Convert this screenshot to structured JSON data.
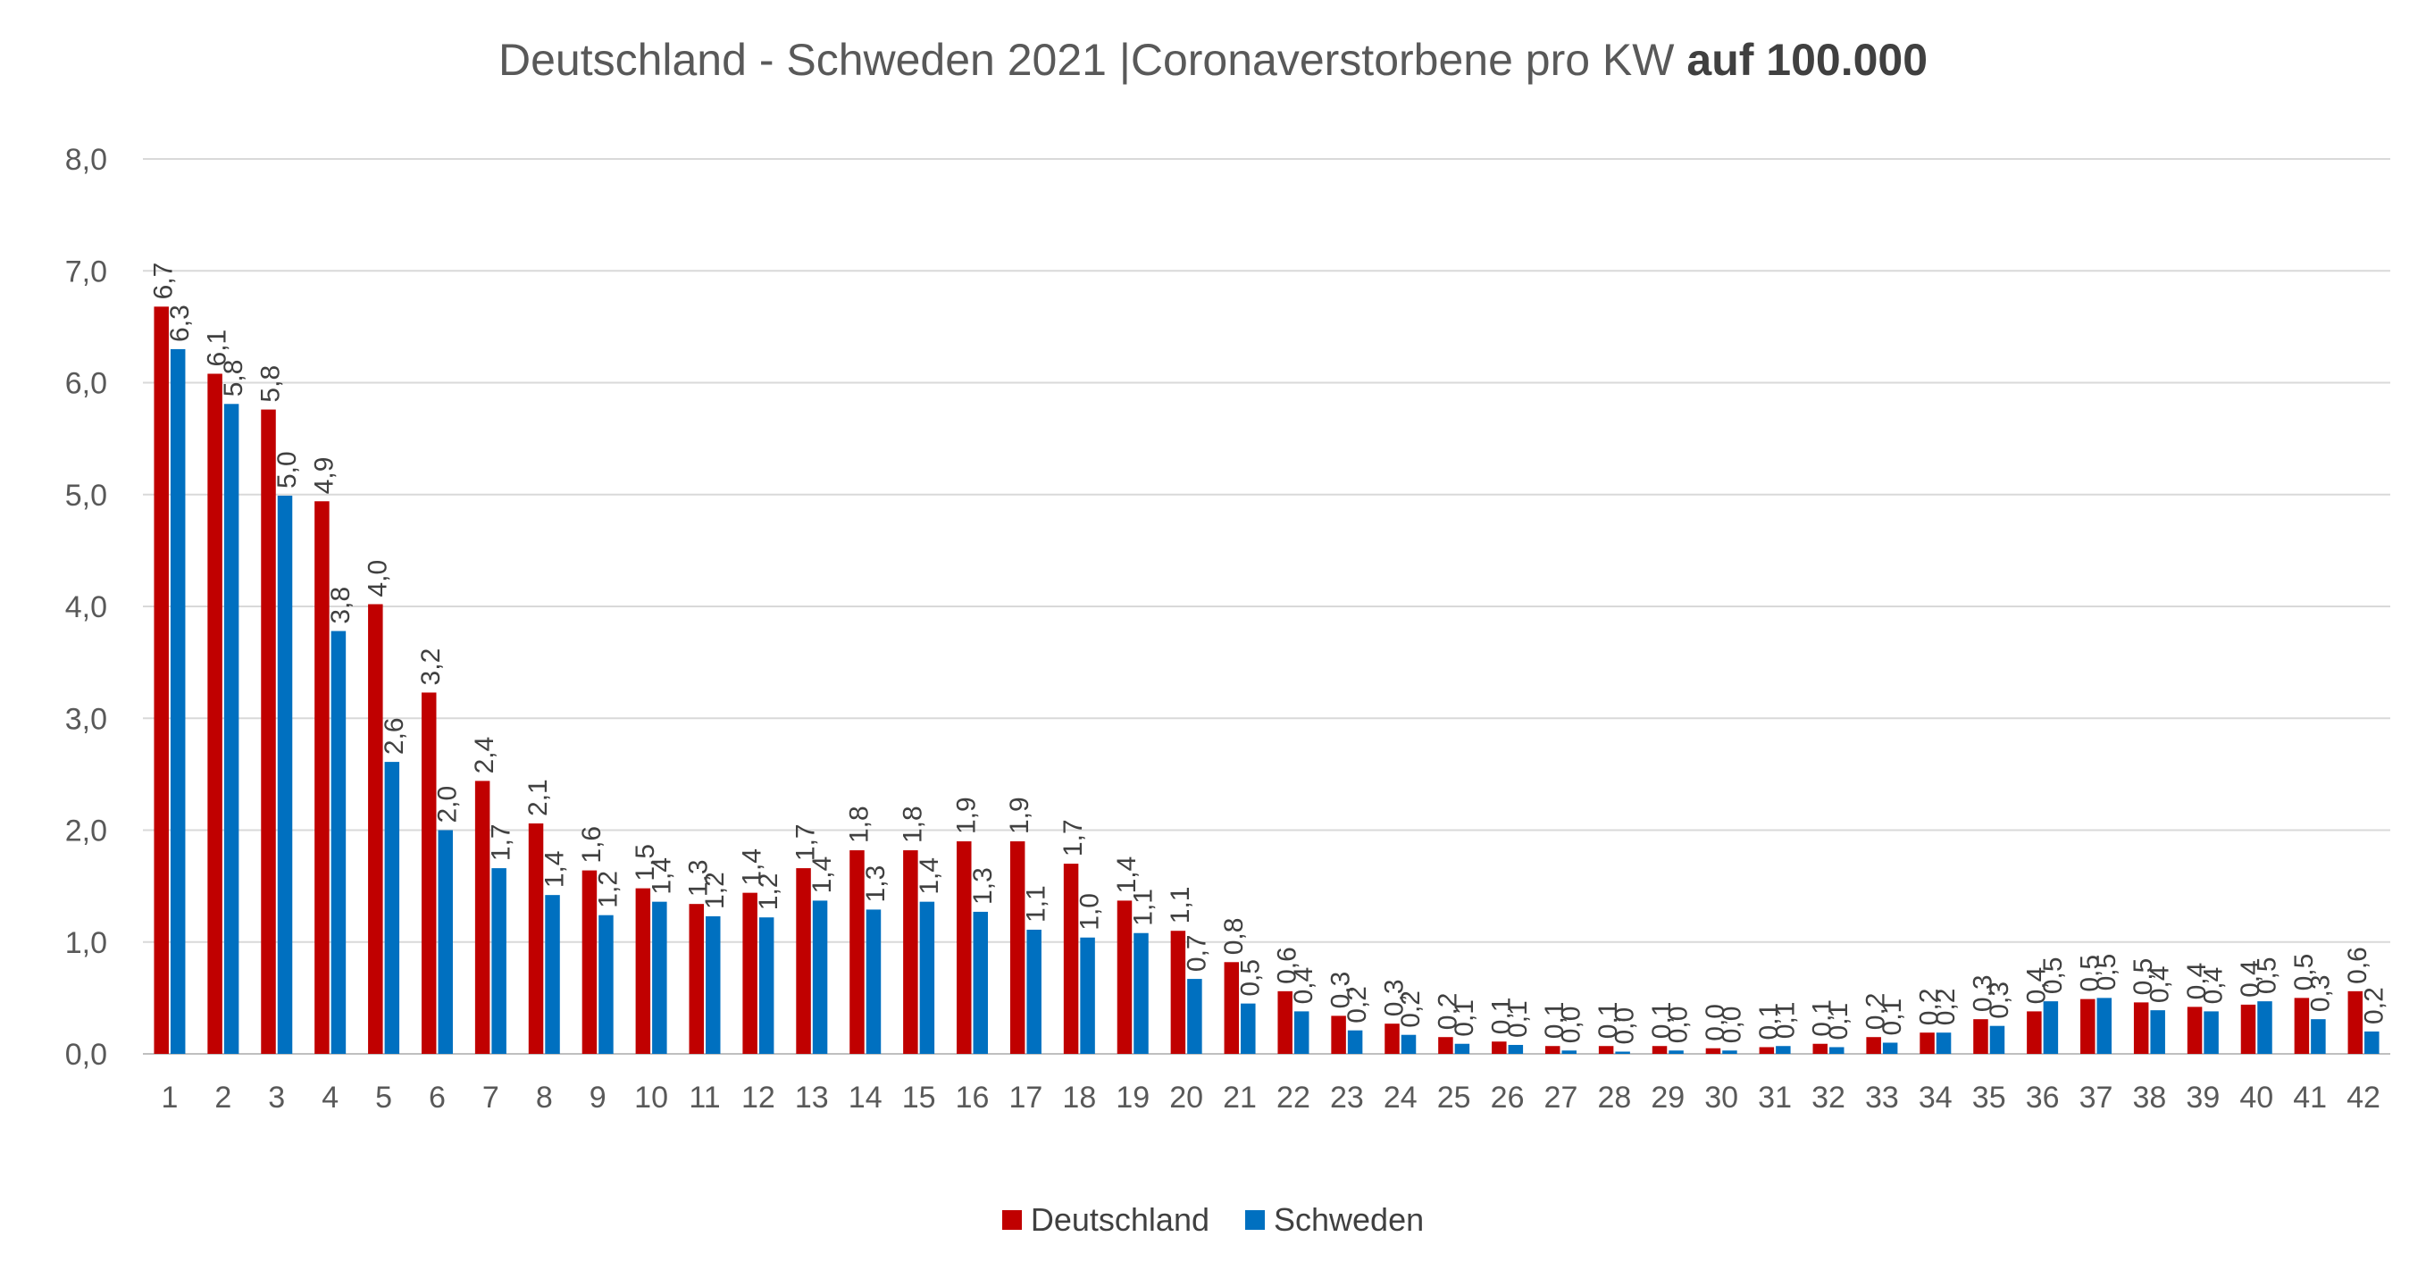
{
  "chart_data": {
    "type": "bar",
    "title": "Deutschland - Schweden 2021 |Coronaverstorbene pro KW",
    "title_bold": "auf 100.000",
    "xlabel": "",
    "ylabel": "",
    "ylim": [
      0,
      8
    ],
    "y_ticks": [
      "0,0",
      "1,0",
      "2,0",
      "3,0",
      "4,0",
      "5,0",
      "6,0",
      "7,0",
      "8,0"
    ],
    "categories": [
      "1",
      "2",
      "3",
      "4",
      "5",
      "6",
      "7",
      "8",
      "9",
      "10",
      "11",
      "12",
      "13",
      "14",
      "15",
      "16",
      "17",
      "18",
      "19",
      "20",
      "21",
      "22",
      "23",
      "24",
      "25",
      "26",
      "27",
      "28",
      "29",
      "30",
      "31",
      "32",
      "33",
      "34",
      "35",
      "36",
      "37",
      "38",
      "39",
      "40",
      "41",
      "42"
    ],
    "series": [
      {
        "name": "Deutschland",
        "color": "#c00000",
        "values": [
          6.68,
          6.08,
          5.76,
          4.94,
          4.02,
          3.23,
          2.44,
          2.06,
          1.64,
          1.48,
          1.34,
          1.44,
          1.66,
          1.82,
          1.82,
          1.9,
          1.9,
          1.7,
          1.37,
          1.1,
          0.82,
          0.56,
          0.34,
          0.27,
          0.15,
          0.11,
          0.07,
          0.07,
          0.07,
          0.05,
          0.06,
          0.09,
          0.15,
          0.19,
          0.31,
          0.38,
          0.49,
          0.46,
          0.42,
          0.44,
          0.5,
          0.56
        ],
        "labels": [
          "6,7",
          "6,1",
          "5,8",
          "4,9",
          "4,0",
          "3,2",
          "2,4",
          "2,1",
          "1,6",
          "1,5",
          "1,3",
          "1,4",
          "1,7",
          "1,8",
          "1,8",
          "1,9",
          "1,9",
          "1,7",
          "1,4",
          "1,1",
          "0,8",
          "0,6",
          "0,3",
          "0,3",
          "0,2",
          "0,1",
          "0,1",
          "0,1",
          "0,1",
          "0,0",
          "0,1",
          "0,1",
          "0,2",
          "0,2",
          "0,3",
          "0,4",
          "0,5",
          "0,5",
          "0,4",
          "0,4",
          "0,5",
          "0,6"
        ]
      },
      {
        "name": "Schweden",
        "color": "#0070c0",
        "values": [
          6.3,
          5.81,
          4.99,
          3.78,
          2.61,
          2.0,
          1.66,
          1.42,
          1.24,
          1.36,
          1.23,
          1.22,
          1.37,
          1.29,
          1.36,
          1.27,
          1.11,
          1.04,
          1.08,
          0.67,
          0.45,
          0.38,
          0.21,
          0.17,
          0.09,
          0.08,
          0.03,
          0.02,
          0.03,
          0.03,
          0.07,
          0.06,
          0.1,
          0.19,
          0.25,
          0.47,
          0.5,
          0.39,
          0.38,
          0.47,
          0.31,
          0.2
        ],
        "labels": [
          "6,3",
          "5,8",
          "5,0",
          "3,8",
          "2,6",
          "2,0",
          "1,7",
          "1,4",
          "1,2",
          "1,4",
          "1,2",
          "1,2",
          "1,4",
          "1,3",
          "1,4",
          "1,3",
          "1,1",
          "1,0",
          "1,1",
          "0,7",
          "0,5",
          "0,4",
          "0,2",
          "0,2",
          "0,1",
          "0,1",
          "0,0",
          "0,0",
          "0,0",
          "0,0",
          "0,1",
          "0,1",
          "0,1",
          "0,2",
          "0,3",
          "0,5",
          "0,5",
          "0,4",
          "0,4",
          "0,5",
          "0,3",
          "0,2"
        ]
      }
    ],
    "grid": true,
    "legend_position": "bottom"
  }
}
